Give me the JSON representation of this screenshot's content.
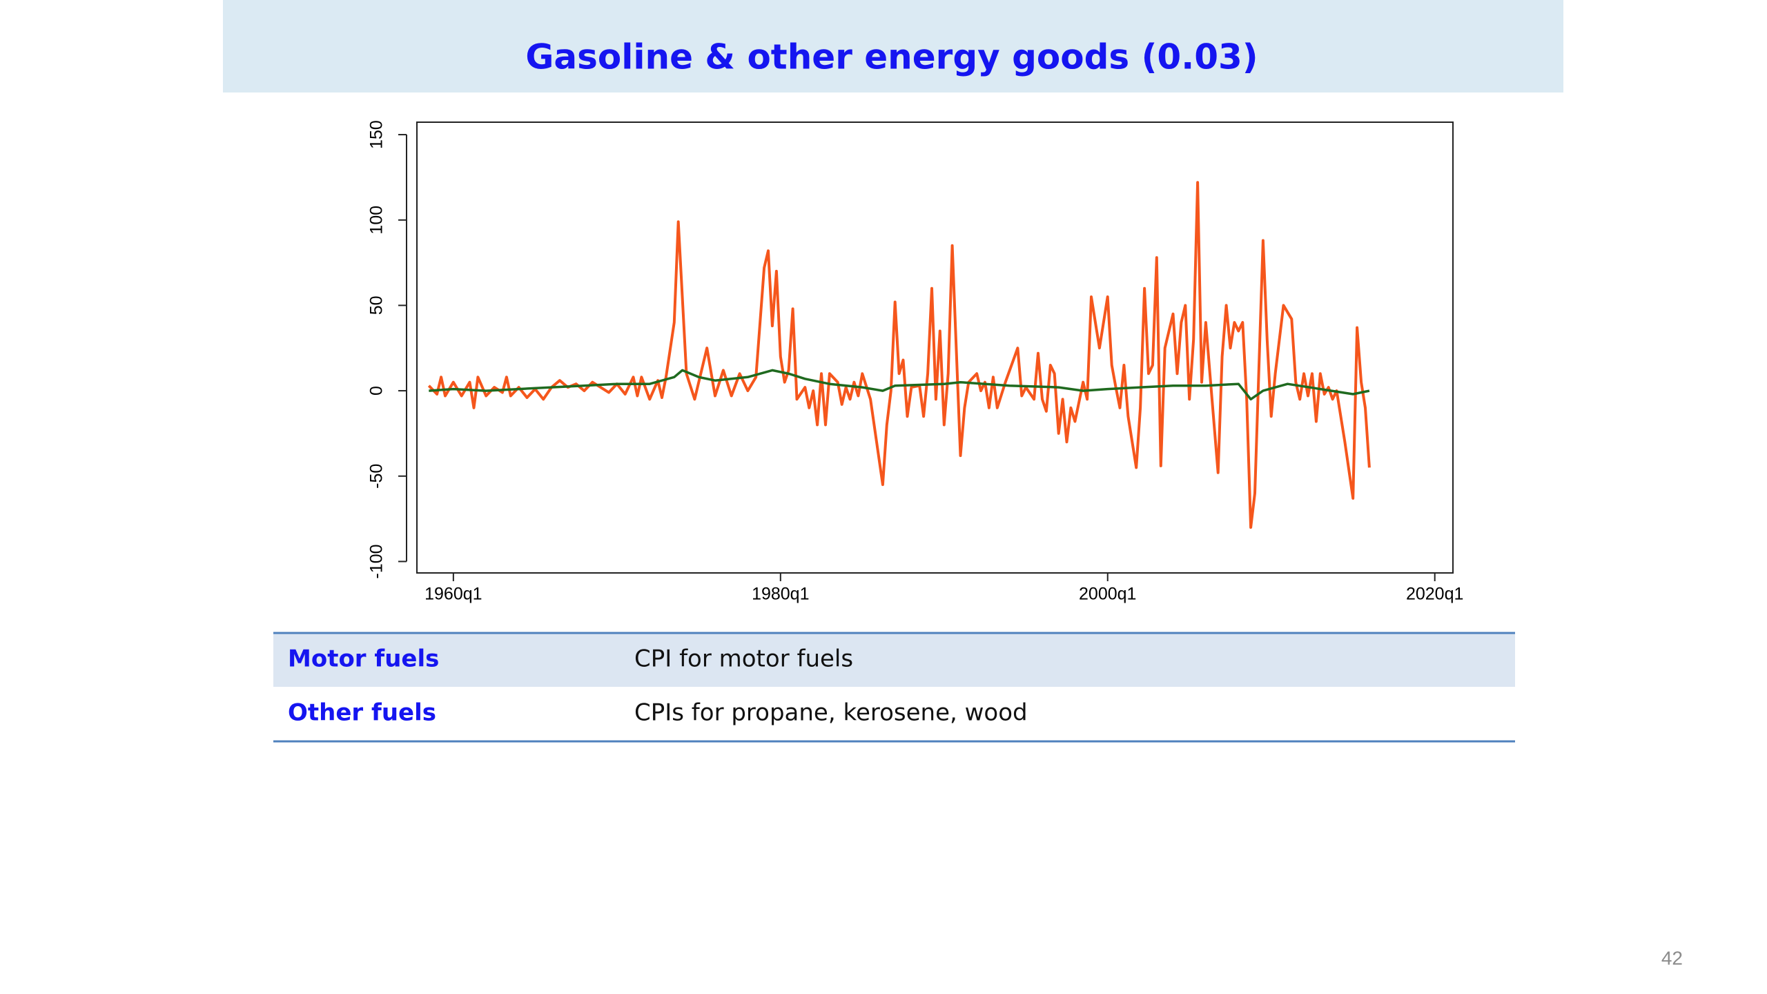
{
  "header": {
    "title": "Gasoline & other energy goods (0.03)"
  },
  "chart_data": {
    "type": "line",
    "xlim": [
      1957.77,
      2021.11
    ],
    "ylim": [
      -106.7,
      157.3
    ],
    "xticks": [
      {
        "value": 1960,
        "label": "1960q1"
      },
      {
        "value": 1980,
        "label": "1980q1"
      },
      {
        "value": 2000,
        "label": "2000q1"
      },
      {
        "value": 2020,
        "label": "2020q1"
      }
    ],
    "yticks": [
      -100,
      -50,
      0,
      50,
      100,
      150
    ],
    "series": [
      {
        "color": "#f5561c",
        "x": [
          1958.5,
          1959,
          1959.25,
          1959.5,
          1960,
          1960.5,
          1961,
          1961.25,
          1961.5,
          1962,
          1962.5,
          1963,
          1963.25,
          1963.5,
          1964,
          1964.5,
          1965,
          1965.5,
          1966,
          1966.5,
          1967,
          1967.5,
          1968,
          1968.5,
          1969,
          1969.5,
          1970,
          1970.5,
          1971,
          1971.25,
          1971.5,
          1972,
          1972.5,
          1972.75,
          1973,
          1973.5,
          1973.75,
          1974.25,
          1974.75,
          1975,
          1975.5,
          1976,
          1976.5,
          1977,
          1977.5,
          1978,
          1978.5,
          1979,
          1979.25,
          1979.5,
          1979.75,
          1980,
          1980.25,
          1980.5,
          1980.75,
          1981,
          1981.5,
          1981.75,
          1982,
          1982.25,
          1982.5,
          1982.75,
          1983,
          1983.5,
          1983.75,
          1984,
          1984.25,
          1984.5,
          1984.75,
          1985,
          1985.5,
          1986.25,
          1986.5,
          1986.75,
          1987,
          1987.25,
          1987.5,
          1987.75,
          1988,
          1988.5,
          1988.75,
          1989,
          1989.25,
          1989.5,
          1989.75,
          1990,
          1990.25,
          1990.5,
          1991,
          1991.25,
          1991.5,
          1992,
          1992.25,
          1992.5,
          1992.75,
          1993,
          1993.25,
          1993.75,
          1994.5,
          1994.75,
          1995,
          1995.5,
          1995.75,
          1996,
          1996.25,
          1996.5,
          1996.75,
          1997,
          1997.25,
          1997.5,
          1997.75,
          1998,
          1998.5,
          1998.75,
          1999,
          1999.5,
          2000,
          2000.25,
          2000.5,
          2000.75,
          2001,
          2001.25,
          2001.75,
          2002,
          2002.25,
          2002.5,
          2002.75,
          2003,
          2003.25,
          2003.5,
          2004,
          2004.25,
          2004.5,
          2004.75,
          2005,
          2005.25,
          2005.5,
          2005.75,
          2006,
          2006.25,
          2006.75,
          2007,
          2007.25,
          2007.5,
          2007.75,
          2008,
          2008.25,
          2008.5,
          2008.75,
          2009,
          2009.5,
          2009.75,
          2010,
          2010.25,
          2010.75,
          2011.25,
          2011.5,
          2011.75,
          2012,
          2012.25,
          2012.5,
          2012.75,
          2013,
          2013.25,
          2013.5,
          2013.75,
          2014,
          2014.5,
          2015,
          2015.25,
          2015.5,
          2015.75,
          2016
        ],
        "values": [
          3,
          -2,
          8,
          -3,
          5,
          -3,
          5,
          -10,
          8,
          -3,
          2,
          -1,
          8,
          -3,
          2,
          -4,
          1,
          -5,
          2,
          6,
          2,
          4,
          0,
          5,
          2,
          -1,
          4,
          -2,
          8,
          -3,
          8,
          -5,
          6,
          -4,
          8,
          40,
          99,
          10,
          -5,
          5,
          25,
          -3,
          12,
          -3,
          10,
          0,
          8,
          72,
          82,
          38,
          70,
          20,
          5,
          12,
          48,
          -5,
          2,
          -10,
          0,
          -20,
          10,
          -20,
          10,
          5,
          -8,
          2,
          -5,
          5,
          -3,
          10,
          -5,
          -55,
          -20,
          0,
          52,
          10,
          18,
          -15,
          2,
          3,
          -15,
          10,
          60,
          -5,
          35,
          -20,
          10,
          85,
          -38,
          -10,
          5,
          10,
          0,
          5,
          -10,
          8,
          -10,
          5,
          25,
          -3,
          2,
          -5,
          22,
          -5,
          -12,
          15,
          10,
          -25,
          -5,
          -30,
          -10,
          -18,
          5,
          -5,
          55,
          25,
          55,
          15,
          2,
          -10,
          15,
          -15,
          -45,
          -10,
          60,
          10,
          15,
          78,
          -44,
          25,
          45,
          10,
          40,
          50,
          -5,
          30,
          122,
          5,
          40,
          10,
          -48,
          20,
          50,
          25,
          40,
          35,
          40,
          -5,
          -80,
          -60,
          88,
          30,
          -15,
          10,
          50,
          42,
          5,
          -5,
          10,
          -3,
          10,
          -18,
          10,
          -2,
          2,
          -5,
          0,
          -30,
          -63,
          37,
          5,
          -10,
          -45
        ]
      },
      {
        "color": "#1f6a1f",
        "x": [
          1958.5,
          1960,
          1962,
          1964,
          1966,
          1968,
          1970,
          1972,
          1973.5,
          1974,
          1975,
          1976,
          1977,
          1978,
          1979.5,
          1980.5,
          1981.5,
          1983,
          1985,
          1986.25,
          1987,
          1990,
          1991,
          1994,
          1997,
          1998.5,
          2000,
          2002,
          2004,
          2006,
          2008,
          2008.75,
          2009.5,
          2011,
          2013,
          2015,
          2016
        ],
        "values": [
          0,
          1,
          0,
          1,
          2,
          3,
          4,
          4,
          8,
          12,
          8,
          6,
          7,
          8,
          12,
          10,
          7,
          4,
          2,
          0,
          3,
          4,
          5,
          3,
          2,
          0,
          1,
          2,
          3,
          3,
          4,
          -5,
          0,
          4,
          1,
          -2,
          0
        ]
      }
    ]
  },
  "table": {
    "rows": [
      [
        "Motor fuels",
        "CPI for motor fuels"
      ],
      [
        "Other fuels",
        "CPIs for propane, kerosene, wood"
      ]
    ]
  },
  "page_number": "42"
}
